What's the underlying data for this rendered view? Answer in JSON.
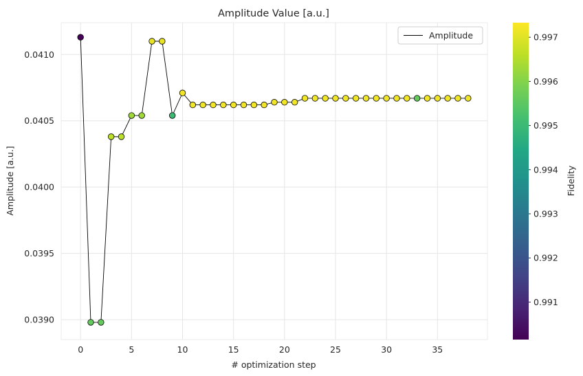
{
  "chart_data": {
    "type": "scatter",
    "title": "Amplitude Value [a.u.]",
    "xlabel": "# optimization step",
    "ylabel": "Amplitude [a.u.]",
    "xlim": [
      -1.9,
      39.9
    ],
    "ylim": [
      0.03885,
      0.04124
    ],
    "xticks": [
      0,
      5,
      10,
      15,
      20,
      25,
      30,
      35
    ],
    "xtick_labels": [
      "0",
      "5",
      "10",
      "15",
      "20",
      "25",
      "30",
      "35"
    ],
    "yticks": [
      0.039,
      0.0395,
      0.04,
      0.0405,
      0.041
    ],
    "ytick_labels": [
      "0.0390",
      "0.0395",
      "0.0400",
      "0.0405",
      "0.0410"
    ],
    "grid": true,
    "legend": {
      "position": "upper-right",
      "entries": [
        "Amplitude"
      ]
    },
    "line_color": "#000000",
    "marker_edge_color": "#000000",
    "series": [
      {
        "name": "Amplitude",
        "x": [
          0,
          1,
          2,
          3,
          4,
          5,
          6,
          7,
          8,
          9,
          10,
          11,
          12,
          13,
          14,
          15,
          16,
          17,
          18,
          19,
          20,
          21,
          22,
          23,
          24,
          25,
          26,
          27,
          28,
          29,
          30,
          31,
          32,
          33,
          34,
          35,
          36,
          37,
          38
        ],
        "y": [
          0.04113,
          0.03898,
          0.03898,
          0.04038,
          0.04038,
          0.04054,
          0.04054,
          0.0411,
          0.0411,
          0.04054,
          0.04071,
          0.04062,
          0.04062,
          0.04062,
          0.04062,
          0.04062,
          0.04062,
          0.04062,
          0.04062,
          0.04064,
          0.04064,
          0.04064,
          0.04067,
          0.04067,
          0.04067,
          0.04067,
          0.04067,
          0.04067,
          0.04067,
          0.04067,
          0.04067,
          0.04067,
          0.04067,
          0.04067,
          0.04067,
          0.04067,
          0.04067,
          0.04067,
          0.04067
        ],
        "fidelity": [
          0.9902,
          0.9956,
          0.9956,
          0.9966,
          0.9966,
          0.9963,
          0.9963,
          0.9971,
          0.9971,
          0.995,
          0.9972,
          0.9972,
          0.9972,
          0.9972,
          0.9972,
          0.9972,
          0.9972,
          0.9972,
          0.9972,
          0.9972,
          0.9972,
          0.9972,
          0.9972,
          0.9972,
          0.9972,
          0.9972,
          0.9972,
          0.9972,
          0.9972,
          0.9972,
          0.9972,
          0.9972,
          0.9972,
          0.9956,
          0.9972,
          0.9972,
          0.9972,
          0.9972,
          0.9972
        ]
      }
    ],
    "colorbar": {
      "label": "Fidelity",
      "colormap": "viridis",
      "range": [
        0.99015,
        0.99733
      ],
      "ticks": [
        0.991,
        0.992,
        0.993,
        0.994,
        0.995,
        0.996,
        0.997
      ],
      "tick_labels": [
        "0.991",
        "0.992",
        "0.993",
        "0.994",
        "0.995",
        "0.996",
        "0.997"
      ]
    }
  }
}
